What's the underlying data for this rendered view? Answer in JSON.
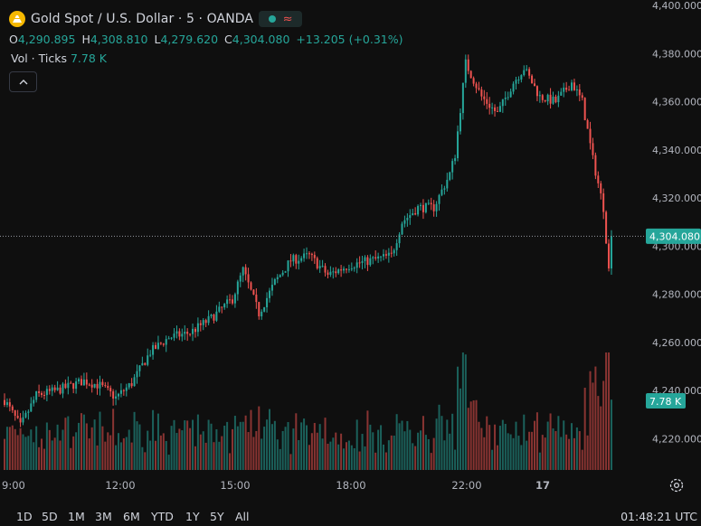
{
  "header": {
    "title": "Gold Spot / U.S. Dollar · 5 · OANDA",
    "ohlc": [
      {
        "label": "O",
        "value": "4,290.895"
      },
      {
        "label": "H",
        "value": "4,308.810"
      },
      {
        "label": "L",
        "value": "4,279.620"
      },
      {
        "label": "C",
        "value": "4,304.080"
      },
      {
        "label": "",
        "value": "+13.205 (+0.31%)"
      }
    ],
    "volume_label": "Vol · Ticks",
    "volume_value": "7.78 K",
    "icons": [
      "gold-logo-icon",
      "market-open-icon",
      "wave-icon",
      "chevron-up-icon",
      "gear-icon"
    ]
  },
  "ranges": [
    "1D",
    "5D",
    "1M",
    "3M",
    "6M",
    "YTD",
    "1Y",
    "5Y",
    "All"
  ],
  "clock": "01:48:21 UTC",
  "colors": {
    "up": "#26a69a",
    "down": "#ef5350",
    "background": "#0f0f0f",
    "text": "#d1d4dc"
  },
  "chart_data": {
    "type": "candlestick",
    "price_tick_labels": [
      "4,400.000",
      "4,380.000",
      "4,360.000",
      "4,340.000",
      "4,320.000",
      "4,300.000",
      "4,280.000",
      "4,260.000",
      "4,240.000",
      "4,220.000"
    ],
    "price_range": [
      4205,
      4400
    ],
    "last_price_label": "4,304.080",
    "last_volume_label": "7.78 K",
    "time_tick_labels": [
      "9:00",
      "12:00",
      "15:00",
      "18:00",
      "22:00",
      "17"
    ],
    "anchors": [
      {
        "t": 0,
        "p": 4236
      },
      {
        "t": 6,
        "p": 4225
      },
      {
        "t": 12,
        "p": 4238
      },
      {
        "t": 20,
        "p": 4240
      },
      {
        "t": 30,
        "p": 4244
      },
      {
        "t": 36,
        "p": 4242
      },
      {
        "t": 42,
        "p": 4237
      },
      {
        "t": 48,
        "p": 4243
      },
      {
        "t": 55,
        "p": 4256
      },
      {
        "t": 62,
        "p": 4262
      },
      {
        "t": 70,
        "p": 4264
      },
      {
        "t": 78,
        "p": 4270
      },
      {
        "t": 86,
        "p": 4278
      },
      {
        "t": 90,
        "p": 4290
      },
      {
        "t": 96,
        "p": 4272
      },
      {
        "t": 102,
        "p": 4285
      },
      {
        "t": 108,
        "p": 4294
      },
      {
        "t": 115,
        "p": 4296
      },
      {
        "t": 122,
        "p": 4288
      },
      {
        "t": 130,
        "p": 4292
      },
      {
        "t": 138,
        "p": 4294
      },
      {
        "t": 146,
        "p": 4296
      },
      {
        "t": 150,
        "p": 4310
      },
      {
        "t": 156,
        "p": 4316
      },
      {
        "t": 162,
        "p": 4316
      },
      {
        "t": 168,
        "p": 4330
      },
      {
        "t": 170,
        "p": 4338
      },
      {
        "t": 174,
        "p": 4376
      },
      {
        "t": 180,
        "p": 4362
      },
      {
        "t": 186,
        "p": 4355
      },
      {
        "t": 192,
        "p": 4368
      },
      {
        "t": 196,
        "p": 4374
      },
      {
        "t": 202,
        "p": 4362
      },
      {
        "t": 208,
        "p": 4360
      },
      {
        "t": 214,
        "p": 4368
      },
      {
        "t": 218,
        "p": 4360
      },
      {
        "t": 222,
        "p": 4336
      },
      {
        "t": 226,
        "p": 4316
      },
      {
        "t": 228,
        "p": 4290
      },
      {
        "t": 229,
        "p": 4304
      }
    ],
    "volume_max_ticks": 13000,
    "volume_last": 7780
  }
}
